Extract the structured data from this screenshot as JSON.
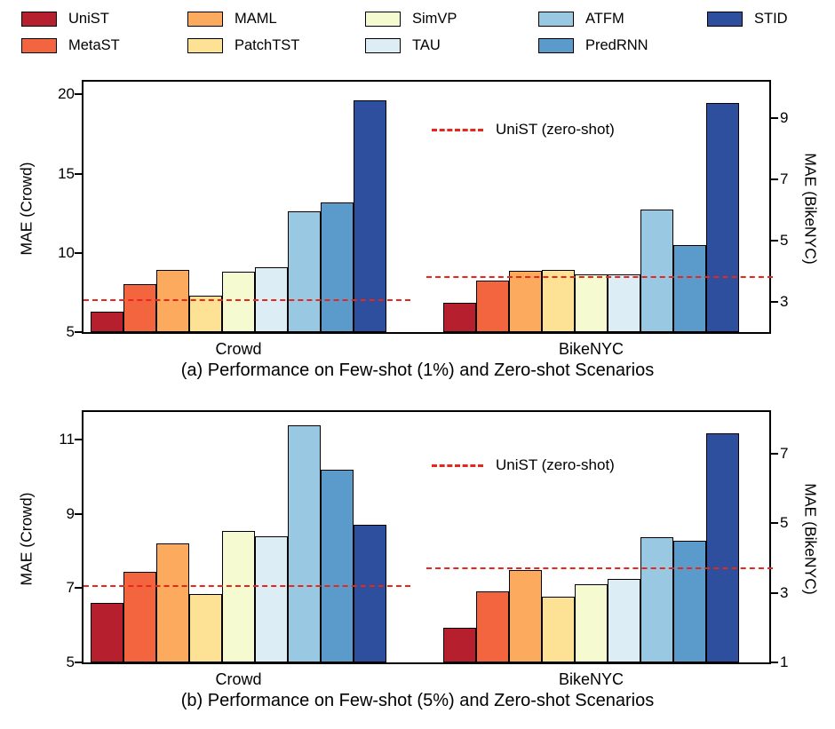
{
  "legend": {
    "items": [
      {
        "label": "UniST",
        "color": "#b6202e"
      },
      {
        "label": "MAML",
        "color": "#fbaa5e"
      },
      {
        "label": "SimVP",
        "color": "#f5fad0"
      },
      {
        "label": "ATFM",
        "color": "#99c9e2"
      },
      {
        "label": "STID",
        "color": "#2d4f9e"
      },
      {
        "label": "MetaST",
        "color": "#f3653e"
      },
      {
        "label": "PatchTST",
        "color": "#fde195"
      },
      {
        "label": "TAU",
        "color": "#dcedf6"
      },
      {
        "label": "PredRNN",
        "color": "#5a9bcb"
      }
    ]
  },
  "chart_data": [
    {
      "type": "bar",
      "title": "(a) Performance on Few-shot (1%) and Zero-shot Scenarios",
      "legend_position": "top",
      "methods": [
        "UniST",
        "MetaST",
        "MAML",
        "PatchTST",
        "SimVP",
        "TAU",
        "ATFM",
        "PredRNN",
        "STID"
      ],
      "colors": [
        "#b6202e",
        "#f3653e",
        "#fbaa5e",
        "#fde195",
        "#f5fad0",
        "#dcedf6",
        "#99c9e2",
        "#5a9bcb",
        "#2d4f9e"
      ],
      "left_axis": {
        "label": "MAE (Crowd)",
        "ticks": [
          5,
          10,
          15,
          20
        ],
        "min": 5,
        "max": 20.8
      },
      "right_axis": {
        "label": "MAE (BikeNYC)",
        "ticks": [
          3,
          5,
          7,
          9
        ],
        "min": 2.0,
        "max": 10.2
      },
      "groups": [
        {
          "label": "Crowd",
          "axis": "left",
          "values": [
            6.3,
            8.0,
            8.9,
            7.3,
            8.8,
            9.1,
            12.6,
            13.2,
            19.6
          ],
          "zero_shot_line": 7.0
        },
        {
          "label": "BikeNYC",
          "axis": "right",
          "values": [
            2.95,
            3.7,
            4.0,
            4.05,
            3.9,
            3.9,
            6.0,
            4.85,
            9.5
          ],
          "zero_shot_line": 3.8
        }
      ],
      "zero_shot_legend_label": "UniST (zero-shot)",
      "line_color": "#e8261c"
    },
    {
      "type": "bar",
      "title": "(b) Performance on Few-shot (5%) and Zero-shot Scenarios",
      "legend_position": "top",
      "methods": [
        "UniST",
        "MetaST",
        "MAML",
        "PatchTST",
        "SimVP",
        "TAU",
        "ATFM",
        "PredRNN",
        "STID"
      ],
      "colors": [
        "#b6202e",
        "#f3653e",
        "#fbaa5e",
        "#fde195",
        "#f5fad0",
        "#dcedf6",
        "#99c9e2",
        "#5a9bcb",
        "#2d4f9e"
      ],
      "left_axis": {
        "label": "MAE (Crowd)",
        "ticks": [
          5,
          7,
          9,
          11
        ],
        "min": 5,
        "max": 11.75
      },
      "right_axis": {
        "label": "MAE (BikeNYC)",
        "ticks": [
          1,
          3,
          5,
          7
        ],
        "min": 1,
        "max": 8.2
      },
      "groups": [
        {
          "label": "Crowd",
          "axis": "left",
          "values": [
            6.6,
            7.45,
            8.2,
            6.85,
            8.55,
            8.4,
            11.4,
            10.2,
            8.7
          ],
          "zero_shot_line": 7.05
        },
        {
          "label": "BikeNYC",
          "axis": "right",
          "values": [
            2.0,
            3.05,
            3.65,
            2.9,
            3.25,
            3.4,
            4.6,
            4.5,
            7.6
          ],
          "zero_shot_line": 3.7
        }
      ],
      "zero_shot_legend_label": "UniST (zero-shot)",
      "line_color": "#e8261c"
    }
  ]
}
